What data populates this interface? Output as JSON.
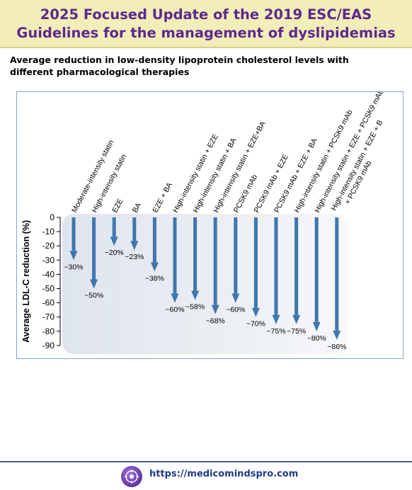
{
  "header": {
    "title": "2025 Focused Update of the 2019 ESC/EAS Guidelines for the management of dyslipidemias"
  },
  "subtitle": "Average reduction in low-density lipoprotein cholesterol levels with different pharmacological therapies",
  "footer": {
    "url": "https://medicomindspro.com",
    "logo_icon": "brain-icon"
  },
  "colors": {
    "banner_bg": "#f3edb8",
    "title": "#5b2a8e",
    "arrow": "#3f76ad"
  },
  "chart_data": {
    "type": "bar",
    "orientation": "vertical-downward-arrows",
    "ylabel": "Average LDL-C reduction (%)",
    "ylim": [
      -90,
      0
    ],
    "yticks": [
      0,
      -10,
      -20,
      -30,
      -40,
      -50,
      -60,
      -70,
      -80,
      -90
    ],
    "categories": [
      "Moderate-intensity statin",
      "High-intensity statin",
      "EZE",
      "BA",
      "EZE + BA",
      "High-intensity statin + EZE",
      "High-intensity statin + BA",
      "High-intensity statin + EZE+BA",
      "PCSK9 mAb",
      "PCSK9 mAb + EZE",
      "PCSK9 mAb + EZE + BA",
      "High-intensity statin + PCSK9 mAb",
      "High-intensity statin + EZE + PCSK9 mAb",
      "High-intensity statin + EZE + BA + PCSK9 mAb"
    ],
    "values": [
      -30,
      -50,
      -20,
      -23,
      -38,
      -60,
      -58,
      -68,
      -60,
      -70,
      -75,
      -75,
      -80,
      -86
    ],
    "data_labels": [
      "~30%",
      "~50%",
      "~20%",
      "~23%",
      "~38%",
      "~60%",
      "~58%",
      "~68%",
      "~60%",
      "~70%",
      "~75%",
      "~75%",
      "~80%",
      "~86%"
    ],
    "grid": false,
    "legend": "none"
  }
}
